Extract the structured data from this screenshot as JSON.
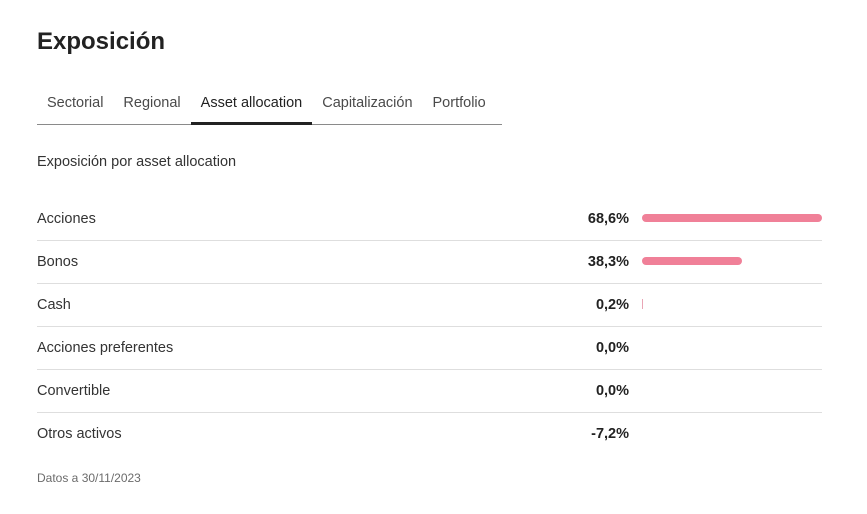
{
  "title": "Exposición",
  "tabs": [
    {
      "label": "Sectorial",
      "active": false
    },
    {
      "label": "Regional",
      "active": false
    },
    {
      "label": "Asset allocation",
      "active": true
    },
    {
      "label": "Capitalización",
      "active": false
    },
    {
      "label": "Portfolio",
      "active": false
    }
  ],
  "subtitle": "Exposición por asset allocation",
  "bar_color": "#f08098",
  "allocation": [
    {
      "label": "Acciones",
      "value_text": "68,6%",
      "value": 68.6
    },
    {
      "label": "Bonos",
      "value_text": "38,3%",
      "value": 38.3
    },
    {
      "label": "Cash",
      "value_text": "0,2%",
      "value": 0.2
    },
    {
      "label": "Acciones preferentes",
      "value_text": "0,0%",
      "value": 0.0
    },
    {
      "label": "Convertible",
      "value_text": "0,0%",
      "value": 0.0
    },
    {
      "label": "Otros activos",
      "value_text": "-7,2%",
      "value": -7.2
    }
  ],
  "footnote": "Datos a 30/11/2023"
}
